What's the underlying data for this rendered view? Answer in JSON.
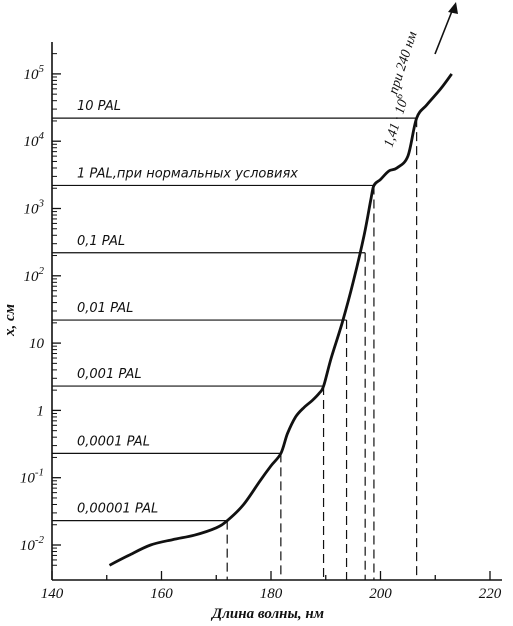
{
  "chart_data": {
    "type": "line",
    "xlabel": "Длина волны, нм",
    "ylabel": "x, см",
    "xlim": [
      140,
      220
    ],
    "ylog": true,
    "ylim": [
      0.005,
      150000
    ],
    "x_ticks": [
      140,
      160,
      180,
      200,
      220
    ],
    "y_ticks": [
      {
        "value": 0.01,
        "base": "10",
        "exp": "-2"
      },
      {
        "value": 0.1,
        "base": "10",
        "exp": "-1"
      },
      {
        "value": 1,
        "base": "1",
        "exp": ""
      },
      {
        "value": 10,
        "base": "10",
        "exp": ""
      },
      {
        "value": 100,
        "base": "10",
        "exp": "2"
      },
      {
        "value": 1000,
        "base": "10",
        "exp": "3"
      },
      {
        "value": 10000,
        "base": "10",
        "exp": "4"
      },
      {
        "value": 100000,
        "base": "10",
        "exp": "5"
      }
    ],
    "grid": false,
    "series": [
      {
        "x": [
          150.5,
          154,
          158,
          162,
          166,
          170,
          172,
          175,
          178,
          180,
          181.8,
          183,
          184.5,
          186,
          187.5,
          188.8,
          189.6,
          191,
          193,
          195,
          197,
          198.2,
          198.8,
          200,
          201.5,
          203,
          205,
          206.6,
          208.5,
          211,
          213
        ],
        "y": [
          0.005,
          0.007,
          0.01,
          0.012,
          0.014,
          0.018,
          0.023,
          0.04,
          0.09,
          0.15,
          0.23,
          0.45,
          0.8,
          1.1,
          1.4,
          1.8,
          2.3,
          6,
          20,
          80,
          400,
          1300,
          2200,
          2700,
          3600,
          4000,
          6000,
          22000,
          35000,
          60000,
          100000
        ]
      }
    ],
    "levels": [
      {
        "label": "10 PAL",
        "value": 22000,
        "x": 206.6
      },
      {
        "label": "1 PAL,при нормальных условиях",
        "value": 2200,
        "x": 198.8
      },
      {
        "label": "0,1 PAL",
        "value": 220,
        "x": 197.2
      },
      {
        "label": "0,01 PAL",
        "value": 22,
        "x": 193.8
      },
      {
        "label": "0,001 PAL",
        "value": 2.3,
        "x": 189.6
      },
      {
        "label": "0,0001 PAL",
        "value": 0.23,
        "x": 181.8
      },
      {
        "label": "0,00001 PAL",
        "value": 0.023,
        "x": 172
      }
    ],
    "annotation": {
      "line1": "1,41 · 10",
      "exp": "6",
      "line2": "при 240 нм"
    }
  }
}
